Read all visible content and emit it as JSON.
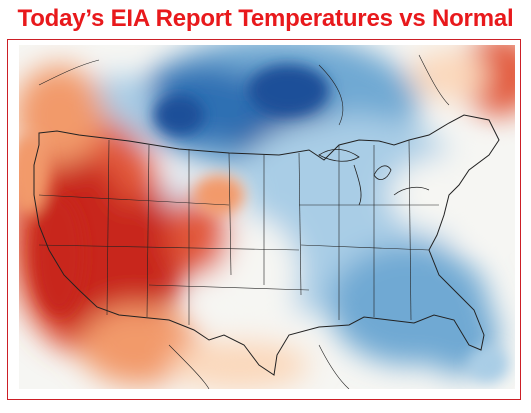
{
  "title": "Today’s EIA Report Temperatures vs Normal",
  "colors": {
    "title": "#e8191c",
    "frame": "#cc1f26",
    "warm_strong": "#c8281d",
    "warm": "#e2593a",
    "warm_light": "#f29a6a",
    "warm_faint": "#fbd8bb",
    "neutral": "#f6f6f3",
    "cool_faint": "#d7e7f4",
    "cool_light": "#a9cde6",
    "cool": "#6fa9d3",
    "cool_strong": "#2f6fb3",
    "cool_deep": "#1f4f99",
    "outline": "#222222"
  }
}
